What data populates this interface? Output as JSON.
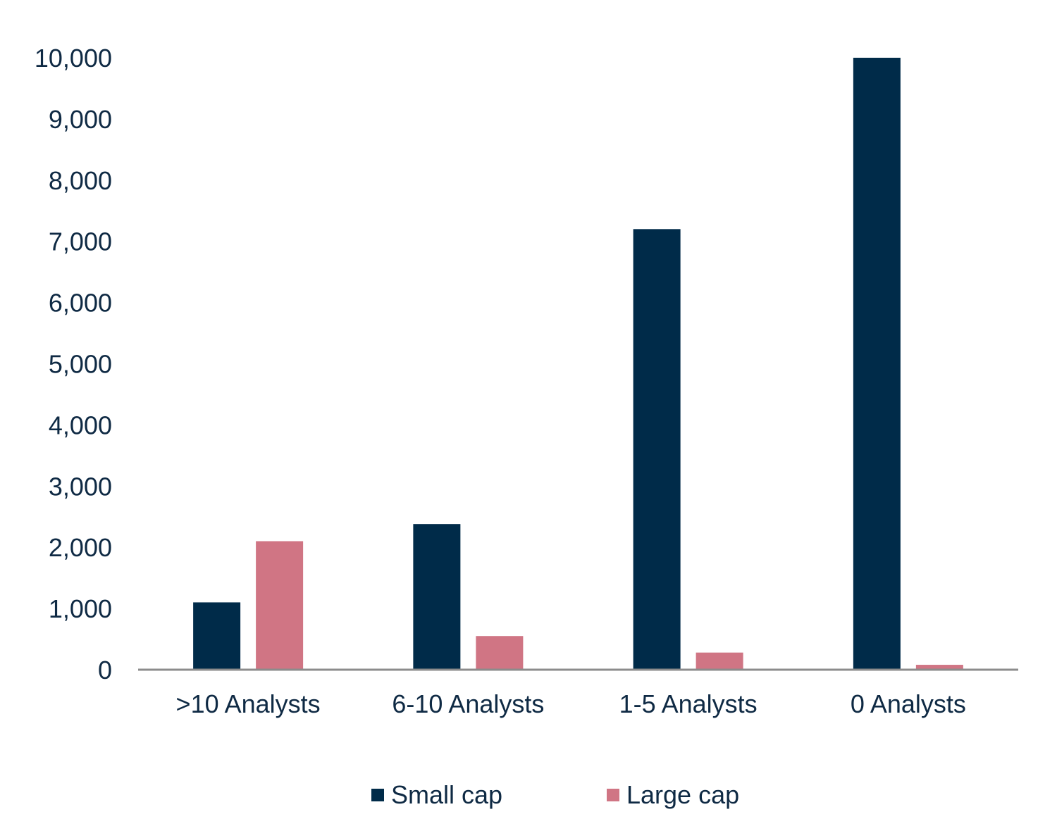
{
  "chart_data": {
    "type": "bar",
    "categories": [
      ">10 Analysts",
      "6-10 Analysts",
      "1-5 Analysts",
      "0 Analysts"
    ],
    "series": [
      {
        "name": "Small cap",
        "color": "#002b49",
        "values": [
          1100,
          2380,
          7200,
          10000
        ]
      },
      {
        "name": "Large cap",
        "color": "#d07584",
        "values": [
          2100,
          550,
          280,
          80
        ]
      }
    ],
    "ylim": [
      0,
      10000
    ],
    "yticks": [
      "0",
      "1,000",
      "2,000",
      "3,000",
      "4,000",
      "5,000",
      "6,000",
      "7,000",
      "8,000",
      "9,000",
      "10,000"
    ],
    "ytick_values": [
      0,
      1000,
      2000,
      3000,
      4000,
      5000,
      6000,
      7000,
      8000,
      9000,
      10000
    ],
    "grid": false,
    "legend_position": "bottom",
    "axis_color": "#8c8c8c",
    "text_color": "#0f2a44"
  }
}
